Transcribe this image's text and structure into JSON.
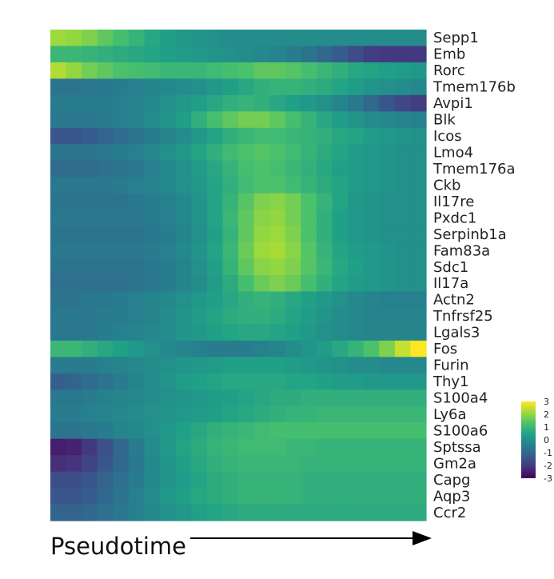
{
  "chart_data": {
    "type": "heatmap",
    "xlabel": "Pseudotime",
    "columns": 24,
    "genes": [
      "Sepp1",
      "Emb",
      "Rorc",
      "Tmem176b",
      "Avpi1",
      "Blk",
      "Icos",
      "Lmo4",
      "Tmem176a",
      "Ckb",
      "Il17re",
      "Pxdc1",
      "Serpinb1a",
      "Fam83a",
      "Sdc1",
      "Il17a",
      "Actn2",
      "Tnfrsf25",
      "Lgals3",
      "Fos",
      "Furin",
      "Thy1",
      "S100a4",
      "Ly6a",
      "S100a6",
      "Sptssa",
      "Gm2a",
      "Capg",
      "Aqp3",
      "Ccr2"
    ],
    "values": [
      [
        2.1,
        2.0,
        1.8,
        1.5,
        1.2,
        0.9,
        0.6,
        0.4,
        0.2,
        0.1,
        0.0,
        -0.1,
        -0.1,
        -0.1,
        -0.1,
        -0.1,
        -0.1,
        -0.1,
        -0.1,
        -0.1,
        -0.1,
        -0.1,
        -0.1,
        -0.1
      ],
      [
        1.0,
        1.0,
        0.9,
        0.8,
        0.7,
        0.6,
        0.5,
        0.4,
        0.3,
        0.2,
        0.1,
        0.0,
        -0.1,
        -0.2,
        -0.3,
        -0.5,
        -0.7,
        -1.0,
        -1.3,
        -1.6,
        -1.9,
        -2.0,
        -2.0,
        -2.0
      ],
      [
        2.3,
        2.0,
        1.7,
        1.5,
        1.3,
        1.2,
        1.1,
        1.0,
        1.0,
        1.0,
        1.1,
        1.2,
        1.3,
        1.5,
        1.5,
        1.4,
        1.2,
        1.0,
        0.8,
        0.6,
        0.5,
        0.4,
        0.3,
        0.2
      ],
      [
        -0.7,
        -0.7,
        -0.6,
        -0.6,
        -0.5,
        -0.4,
        -0.3,
        -0.2,
        -0.1,
        0.0,
        0.2,
        0.4,
        0.6,
        0.8,
        0.9,
        0.9,
        0.8,
        0.7,
        0.5,
        0.3,
        0.1,
        0.0,
        -0.1,
        -0.2
      ],
      [
        -0.5,
        -0.5,
        -0.5,
        -0.5,
        -0.4,
        -0.3,
        -0.2,
        0.0,
        0.2,
        0.4,
        0.6,
        0.8,
        0.9,
        0.8,
        0.6,
        0.4,
        0.2,
        0.0,
        -0.3,
        -0.6,
        -1.0,
        -1.4,
        -1.7,
        -1.9
      ],
      [
        -0.6,
        -0.6,
        -0.6,
        -0.5,
        -0.4,
        -0.3,
        -0.1,
        0.1,
        0.4,
        0.8,
        1.2,
        1.5,
        1.7,
        1.7,
        1.5,
        1.2,
        0.9,
        0.6,
        0.3,
        0.1,
        -0.1,
        -0.2,
        -0.3,
        -0.4
      ],
      [
        -1.4,
        -1.4,
        -1.3,
        -1.1,
        -0.9,
        -0.7,
        -0.5,
        -0.3,
        -0.1,
        0.2,
        0.5,
        0.8,
        1.0,
        1.1,
        1.1,
        1.0,
        0.9,
        0.8,
        0.6,
        0.5,
        0.3,
        0.2,
        0.1,
        0.0
      ],
      [
        -0.7,
        -0.7,
        -0.7,
        -0.6,
        -0.5,
        -0.4,
        -0.2,
        0.0,
        0.2,
        0.5,
        0.8,
        1.1,
        1.3,
        1.4,
        1.3,
        1.1,
        0.9,
        0.7,
        0.5,
        0.3,
        0.2,
        0.1,
        0.0,
        0.0
      ],
      [
        -0.9,
        -0.9,
        -0.9,
        -0.8,
        -0.7,
        -0.6,
        -0.4,
        -0.2,
        0.0,
        0.3,
        0.6,
        0.9,
        1.2,
        1.3,
        1.2,
        1.0,
        0.8,
        0.6,
        0.4,
        0.3,
        0.2,
        0.1,
        0.0,
        0.0
      ],
      [
        -0.6,
        -0.6,
        -0.6,
        -0.6,
        -0.5,
        -0.4,
        -0.3,
        -0.2,
        0.0,
        0.2,
        0.5,
        0.8,
        1.1,
        1.3,
        1.3,
        1.1,
        0.9,
        0.7,
        0.5,
        0.3,
        0.2,
        0.1,
        0.0,
        0.0
      ],
      [
        -0.7,
        -0.7,
        -0.7,
        -0.7,
        -0.7,
        -0.6,
        -0.5,
        -0.4,
        -0.2,
        0.1,
        0.5,
        0.9,
        1.4,
        1.8,
        1.9,
        1.7,
        1.3,
        0.9,
        0.5,
        0.2,
        0.1,
        0.0,
        0.0,
        0.0
      ],
      [
        -0.6,
        -0.6,
        -0.6,
        -0.6,
        -0.6,
        -0.6,
        -0.5,
        -0.4,
        -0.2,
        0.1,
        0.5,
        1.0,
        1.5,
        1.9,
        2.0,
        1.7,
        1.3,
        0.8,
        0.4,
        0.2,
        0.1,
        0.0,
        0.0,
        0.0
      ],
      [
        -0.7,
        -0.7,
        -0.7,
        -0.7,
        -0.7,
        -0.7,
        -0.6,
        -0.5,
        -0.3,
        0.0,
        0.4,
        0.9,
        1.5,
        2.0,
        2.1,
        1.8,
        1.3,
        0.8,
        0.4,
        0.2,
        0.1,
        0.0,
        0.0,
        0.0
      ],
      [
        -0.6,
        -0.6,
        -0.6,
        -0.6,
        -0.6,
        -0.6,
        -0.5,
        -0.4,
        -0.2,
        0.1,
        0.5,
        1.0,
        1.6,
        2.1,
        2.2,
        1.9,
        1.4,
        0.9,
        0.5,
        0.3,
        0.2,
        0.1,
        0.0,
        0.0
      ],
      [
        -0.7,
        -0.7,
        -0.7,
        -0.7,
        -0.7,
        -0.7,
        -0.6,
        -0.5,
        -0.3,
        0.0,
        0.4,
        0.9,
        1.5,
        1.9,
        2.0,
        1.8,
        1.4,
        1.0,
        0.6,
        0.4,
        0.2,
        0.1,
        0.0,
        0.0
      ],
      [
        -0.8,
        -0.8,
        -0.8,
        -0.8,
        -0.8,
        -0.7,
        -0.6,
        -0.5,
        -0.3,
        -0.1,
        0.3,
        0.7,
        1.2,
        1.6,
        1.8,
        1.6,
        1.2,
        0.8,
        0.5,
        0.3,
        0.2,
        0.1,
        0.0,
        0.0
      ],
      [
        -0.7,
        -0.7,
        -0.6,
        -0.6,
        -0.5,
        -0.4,
        -0.3,
        -0.2,
        0.0,
        0.2,
        0.4,
        0.6,
        0.8,
        0.9,
        0.8,
        0.6,
        0.4,
        0.2,
        0.0,
        -0.2,
        -0.3,
        -0.4,
        -0.4,
        -0.4
      ],
      [
        -0.6,
        -0.6,
        -0.6,
        -0.5,
        -0.5,
        -0.4,
        -0.3,
        -0.1,
        0.1,
        0.3,
        0.5,
        0.7,
        0.8,
        0.8,
        0.7,
        0.5,
        0.3,
        0.1,
        -0.1,
        -0.2,
        -0.3,
        -0.3,
        -0.3,
        -0.3
      ],
      [
        -0.6,
        -0.6,
        -0.6,
        -0.5,
        -0.4,
        -0.3,
        -0.2,
        -0.1,
        0.1,
        0.2,
        0.4,
        0.5,
        0.6,
        0.6,
        0.5,
        0.4,
        0.2,
        0.0,
        -0.1,
        -0.2,
        -0.3,
        -0.3,
        -0.3,
        -0.3
      ],
      [
        1.0,
        1.0,
        0.8,
        0.6,
        0.4,
        0.2,
        0.0,
        -0.2,
        -0.3,
        -0.4,
        -0.5,
        -0.5,
        -0.5,
        -0.4,
        -0.3,
        -0.1,
        0.1,
        0.3,
        0.6,
        0.9,
        1.3,
        1.8,
        2.5,
        3.0
      ],
      [
        -0.5,
        -0.5,
        -0.5,
        -0.4,
        -0.3,
        -0.2,
        -0.1,
        0.0,
        0.1,
        0.2,
        0.3,
        0.4,
        0.4,
        0.4,
        0.4,
        0.3,
        0.2,
        0.1,
        0.0,
        -0.1,
        -0.1,
        -0.2,
        -0.2,
        -0.2
      ],
      [
        -1.2,
        -1.1,
        -0.9,
        -0.7,
        -0.5,
        -0.3,
        -0.1,
        0.1,
        0.3,
        0.4,
        0.5,
        0.6,
        0.6,
        0.6,
        0.6,
        0.5,
        0.5,
        0.4,
        0.3,
        0.3,
        0.2,
        0.2,
        0.2,
        0.2
      ],
      [
        -0.6,
        -0.6,
        -0.5,
        -0.4,
        -0.3,
        -0.2,
        -0.1,
        0.0,
        0.1,
        0.2,
        0.3,
        0.4,
        0.5,
        0.6,
        0.7,
        0.7,
        0.8,
        0.8,
        0.8,
        0.8,
        0.8,
        0.8,
        0.8,
        0.8
      ],
      [
        -0.5,
        -0.5,
        -0.4,
        -0.3,
        -0.2,
        -0.1,
        0.0,
        0.1,
        0.2,
        0.3,
        0.4,
        0.5,
        0.6,
        0.7,
        0.8,
        0.9,
        0.9,
        1.0,
        1.0,
        1.0,
        1.0,
        1.0,
        1.0,
        1.0
      ],
      [
        -0.7,
        -0.7,
        -0.6,
        -0.5,
        -0.3,
        -0.2,
        0.0,
        0.2,
        0.4,
        0.6,
        0.8,
        0.9,
        1.0,
        1.1,
        1.2,
        1.2,
        1.2,
        1.2,
        1.2,
        1.2,
        1.2,
        1.2,
        1.2,
        1.2
      ],
      [
        -2.5,
        -2.4,
        -2.0,
        -1.5,
        -1.0,
        -0.5,
        -0.1,
        0.2,
        0.5,
        0.7,
        0.9,
        1.0,
        1.1,
        1.1,
        1.1,
        1.0,
        1.0,
        0.9,
        0.9,
        0.9,
        0.9,
        0.9,
        0.9,
        0.9
      ],
      [
        -2.2,
        -2.1,
        -1.8,
        -1.4,
        -1.0,
        -0.6,
        -0.2,
        0.1,
        0.4,
        0.6,
        0.8,
        0.9,
        1.0,
        1.0,
        1.0,
        1.0,
        0.9,
        0.9,
        0.9,
        0.9,
        0.9,
        0.9,
        0.9,
        0.9
      ],
      [
        -1.6,
        -1.6,
        -1.4,
        -1.1,
        -0.8,
        -0.5,
        -0.2,
        0.1,
        0.3,
        0.5,
        0.7,
        0.8,
        0.9,
        0.9,
        0.9,
        0.9,
        0.8,
        0.8,
        0.8,
        0.8,
        0.8,
        0.8,
        0.8,
        0.8
      ],
      [
        -1.4,
        -1.4,
        -1.3,
        -1.0,
        -0.7,
        -0.4,
        -0.1,
        0.2,
        0.4,
        0.6,
        0.7,
        0.8,
        0.9,
        0.9,
        0.9,
        0.9,
        0.8,
        0.8,
        0.8,
        0.8,
        0.8,
        0.8,
        0.8,
        0.8
      ],
      [
        -1.1,
        -1.1,
        -1.0,
        -0.8,
        -0.6,
        -0.4,
        -0.2,
        0.0,
        0.2,
        0.4,
        0.5,
        0.6,
        0.7,
        0.7,
        0.7,
        0.7,
        0.7,
        0.7,
        0.7,
        0.7,
        0.7,
        0.7,
        0.7,
        0.7
      ]
    ],
    "colorbar": {
      "min": -3,
      "max": 3,
      "ticks": [
        "3",
        "2",
        "1",
        "0",
        "-1",
        "-2",
        "-3"
      ],
      "palette": [
        "#440154",
        "#46327e",
        "#365c8d",
        "#277f8e",
        "#1fa187",
        "#4ac16d",
        "#a0da39",
        "#fde725"
      ]
    }
  }
}
